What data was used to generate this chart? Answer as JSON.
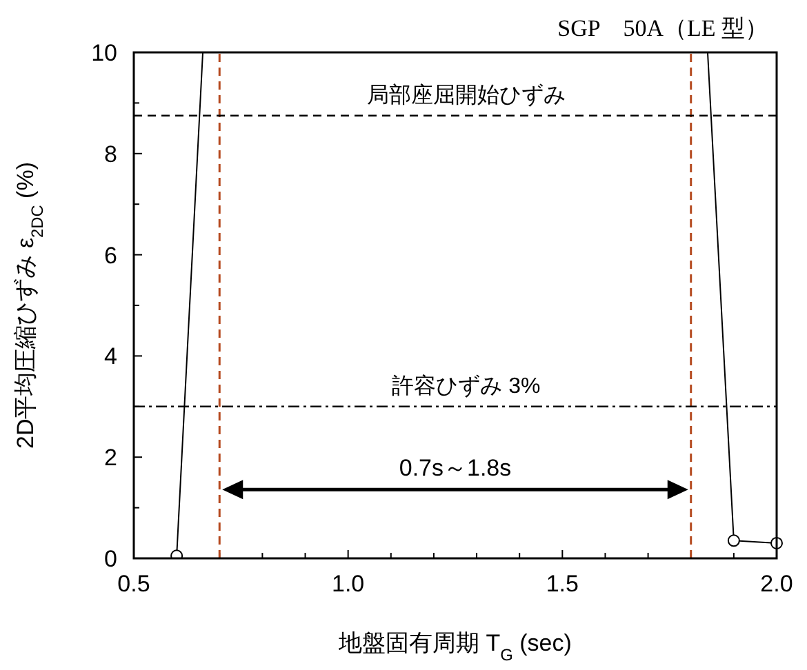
{
  "chart_data": {
    "type": "line",
    "title": "SGP　50A（LE 型）",
    "xlabel": "地盤固有周期 T$_{G}$ (sec)",
    "ylabel": "2D平均圧縮ひずみ ε$_{2DC}$ (%)",
    "xlim": [
      0.5,
      2.0
    ],
    "ylim": [
      0,
      10
    ],
    "xticks": [
      0.5,
      {
        "value": 0.6,
        "label": null
      },
      {
        "value": 0.7,
        "label": null
      },
      {
        "value": 0.8,
        "label": null
      },
      {
        "value": 0.9,
        "label": null
      },
      {
        "value": 1.0,
        "label": "1.0"
      },
      {
        "value": 1.1,
        "label": null
      },
      {
        "value": 1.2,
        "label": null
      },
      {
        "value": 1.3,
        "label": null
      },
      {
        "value": 1.4,
        "label": null
      },
      1.5,
      {
        "value": 1.6,
        "label": null
      },
      {
        "value": 1.7,
        "label": null
      },
      {
        "value": 1.8,
        "label": null
      },
      {
        "value": 1.9,
        "label": null
      },
      {
        "value": 2.0,
        "label": "2.0"
      }
    ],
    "yticks": [
      0,
      {
        "value": 1,
        "label": null
      },
      2,
      {
        "value": 3,
        "label": null
      },
      4,
      {
        "value": 5,
        "label": null
      },
      6,
      {
        "value": 7,
        "label": null
      },
      8,
      {
        "value": 9,
        "label": null
      },
      10
    ],
    "grid": false,
    "series": [
      {
        "color": "#000000",
        "marker": "none",
        "x": [
          0.6,
          0.661,
          1.2,
          1.839,
          1.9,
          2.0
        ],
        "values": [
          0.05,
          10,
          null,
          10,
          0.35,
          0.3
        ]
      },
      {
        "type": "scatter",
        "color": "#000000",
        "marker": "circle",
        "x": [
          0.6,
          1.9,
          2.0
        ],
        "values": [
          0.05,
          0.35,
          0.3
        ]
      }
    ],
    "ref_lines": [
      {
        "axis": "y",
        "value": 8.75,
        "label": "局部座屈開始ひずみ",
        "color": "#000000",
        "line_style": "dashed"
      },
      {
        "axis": "y",
        "value": 3,
        "label": "許容ひずみ 3%",
        "color": "#000000",
        "line_style": "dashdot"
      },
      {
        "axis": "x",
        "value": 0.7,
        "color": "#b5491e",
        "line_style": "dashed"
      },
      {
        "axis": "x",
        "value": 1.8,
        "color": "#b5491e",
        "line_style": "dashed"
      }
    ],
    "annotations": [
      "0.7s～1.8s"
    ]
  }
}
